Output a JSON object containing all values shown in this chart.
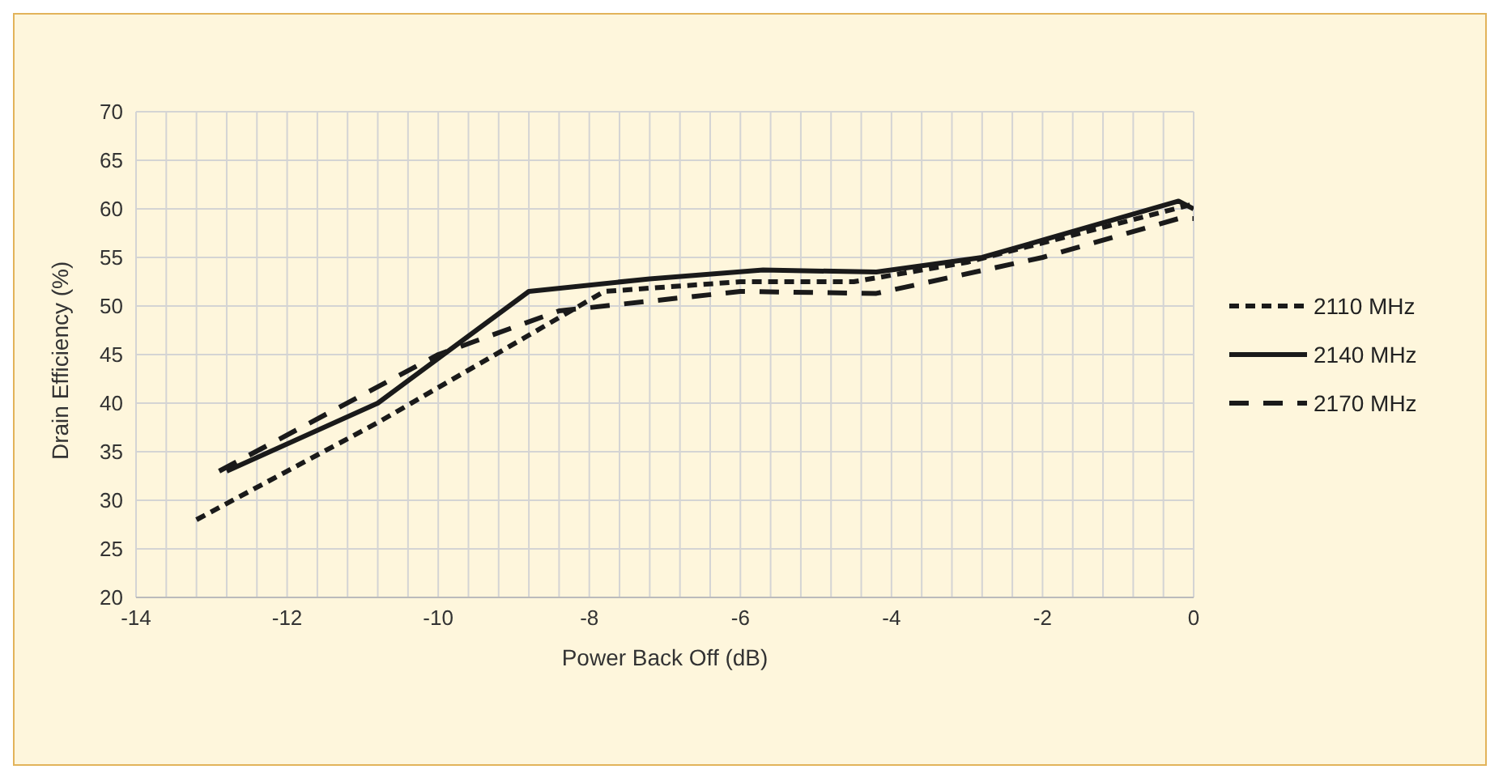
{
  "chart_data": {
    "type": "line",
    "xlabel": "Power Back Off (dB)",
    "ylabel": "Drain Efficiency (%)",
    "xlim": [
      -14,
      0
    ],
    "xticks": [
      -14,
      -12,
      -10,
      -8,
      -6,
      -4,
      -2,
      0
    ],
    "ylim": [
      20,
      70
    ],
    "yticks": [
      20,
      25,
      30,
      35,
      40,
      45,
      50,
      55,
      60,
      65,
      70
    ],
    "grid": true,
    "legend": "right",
    "marker": "none",
    "series": [
      {
        "name": "2110 MHz",
        "color": "#1a1a1a",
        "line_style": "dotted",
        "x": [
          -13.2,
          -10.8,
          -8.8,
          -7.8,
          -6,
          -4.5,
          -3,
          -2,
          0
        ],
        "values": [
          28,
          38,
          47,
          51.5,
          52.5,
          52.5,
          54.5,
          56.5,
          60.5
        ]
      },
      {
        "name": "2140 MHz",
        "color": "#1a1a1a",
        "line_style": "solid",
        "x": [
          -12.8,
          -10.8,
          -8.8,
          -7.2,
          -5.7,
          -4.2,
          -2.8,
          -0.2,
          0
        ],
        "values": [
          33,
          40,
          51.5,
          52.8,
          53.7,
          53.5,
          55,
          60.8,
          60
        ]
      },
      {
        "name": "2170 MHz",
        "color": "#1a1a1a",
        "line_style": "dashed",
        "x": [
          -12.9,
          -10,
          -8.4,
          -6,
          -4.2,
          -2,
          -0.2,
          0
        ],
        "values": [
          33,
          45,
          49.5,
          51.5,
          51.3,
          55,
          59,
          59
        ]
      }
    ]
  }
}
